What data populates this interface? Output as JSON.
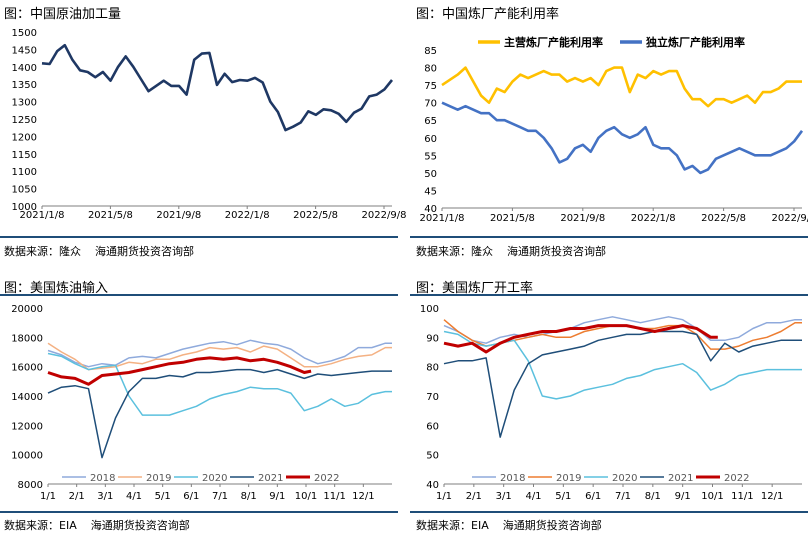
{
  "panels": [
    {
      "title": "图：中国原油加工量",
      "source": "数据来源：隆众",
      "org": "海通期货投资咨询部",
      "chart_data": {
        "type": "line",
        "xlabel": "",
        "ylabel": "",
        "xticks": [
          "2021/1/8",
          "2021/5/8",
          "2021/9/8",
          "2022/1/8",
          "2022/5/8",
          "2022/9/8"
        ],
        "yticks": [
          1000,
          1050,
          1100,
          1150,
          1200,
          1250,
          1300,
          1350,
          1400,
          1450,
          1500
        ],
        "ylim": [
          1000,
          1500
        ],
        "xlim": [
          0,
          92
        ],
        "legend": "none",
        "grid": false,
        "series": [
          {
            "name": "",
            "color": "#1f3864",
            "x": [
              0,
              2,
              4,
              6,
              8,
              10,
              12,
              14,
              16,
              18,
              20,
              22,
              24,
              26,
              28,
              30,
              32,
              34,
              36,
              38,
              40,
              42,
              44,
              46,
              48,
              50,
              52,
              54,
              56,
              58,
              60,
              62,
              64,
              66,
              68,
              70,
              72,
              74,
              76,
              78,
              80,
              82,
              84,
              86,
              88,
              90,
              92
            ],
            "y": [
              1410,
              1408,
              1445,
              1462,
              1420,
              1390,
              1385,
              1370,
              1385,
              1360,
              1400,
              1430,
              1400,
              1365,
              1330,
              1345,
              1360,
              1345,
              1345,
              1320,
              1420,
              1438,
              1440,
              1348,
              1380,
              1356,
              1362,
              1360,
              1368,
              1355,
              1300,
              1270,
              1218,
              1228,
              1240,
              1272,
              1262,
              1278,
              1275,
              1265,
              1242,
              1268,
              1280,
              1315,
              1320,
              1335,
              1362
            ]
          }
        ]
      }
    },
    {
      "title": "图：中国炼厂产能利用率",
      "source": "数据来源：隆众",
      "org": "海通期货投资咨询部",
      "chart_data": {
        "type": "line",
        "xlabel": "",
        "ylabel": "",
        "xticks": [
          "2021/1/8",
          "2021/5/8",
          "2021/9/8",
          "2022/1/8",
          "2022/5/8",
          "2022/9/8"
        ],
        "yticks": [
          40,
          45,
          50,
          55,
          60,
          65,
          70,
          75,
          80,
          85
        ],
        "ylim": [
          40,
          85
        ],
        "xlim": [
          0,
          92
        ],
        "legend": "top",
        "grid": false,
        "series": [
          {
            "name": "主营炼厂产能利用率",
            "color": "#ffc000",
            "x": [
              0,
              4,
              6,
              8,
              10,
              12,
              14,
              16,
              18,
              20,
              22,
              24,
              26,
              28,
              30,
              32,
              34,
              36,
              38,
              40,
              42,
              44,
              46,
              48,
              50,
              52,
              54,
              56,
              58,
              60,
              62,
              64,
              66,
              68,
              70,
              72,
              74,
              76,
              78,
              80,
              82,
              84,
              86,
              88,
              90,
              92
            ],
            "y": [
              75,
              78,
              80,
              76,
              72,
              70,
              74,
              73,
              76,
              78,
              77,
              78,
              79,
              78,
              78,
              76,
              77,
              76,
              77,
              75,
              79,
              80,
              80,
              73,
              78,
              77,
              79,
              78,
              79,
              79,
              74,
              71,
              71,
              69,
              71,
              71,
              70,
              71,
              72,
              70,
              73,
              73,
              74,
              76,
              76,
              76
            ]
          },
          {
            "name": "独立炼厂产能利用率",
            "color": "#4472c4",
            "x": [
              0,
              2,
              4,
              6,
              8,
              10,
              12,
              14,
              16,
              18,
              20,
              22,
              24,
              26,
              28,
              30,
              32,
              34,
              36,
              38,
              40,
              42,
              44,
              46,
              48,
              50,
              52,
              54,
              56,
              58,
              60,
              62,
              64,
              66,
              68,
              70,
              72,
              74,
              76,
              78,
              80,
              82,
              84,
              86,
              88,
              90,
              92
            ],
            "y": [
              70,
              69,
              68,
              69,
              68,
              67,
              67,
              65,
              65,
              64,
              63,
              62,
              62,
              60,
              57,
              53,
              54,
              57,
              58,
              56,
              60,
              62,
              63,
              61,
              60,
              61,
              63,
              58,
              57,
              57,
              55,
              51,
              52,
              50,
              51,
              54,
              55,
              56,
              57,
              56,
              55,
              55,
              55,
              56,
              57,
              59,
              62
            ]
          }
        ]
      }
    },
    {
      "title": "图：美国炼油输入",
      "source": "数据来源：EIA",
      "org": "海通期货投资咨询部",
      "chart_data": {
        "type": "line",
        "xlabel": "",
        "ylabel": "",
        "xticks": [
          "1/1",
          "2/1",
          "3/1",
          "4/1",
          "5/1",
          "6/1",
          "7/1",
          "8/1",
          "9/1",
          "10/1",
          "11/1",
          "12/1"
        ],
        "yticks": [
          8000,
          10000,
          12000,
          14000,
          16000,
          18000,
          20000
        ],
        "ylim": [
          8000,
          20000
        ],
        "xlim": [
          0,
          51
        ],
        "legend": "bottom",
        "grid": false,
        "series": [
          {
            "name": "2018",
            "color": "#8faadc",
            "x": [
              0,
              2,
              4,
              6,
              8,
              10,
              12,
              14,
              16,
              18,
              20,
              22,
              24,
              26,
              28,
              30,
              32,
              34,
              36,
              38,
              40,
              42,
              44,
              46,
              48,
              50,
              51
            ],
            "y": [
              17100,
              16800,
              16300,
              16000,
              16200,
              16100,
              16600,
              16700,
              16600,
              16900,
              17200,
              17400,
              17600,
              17700,
              17500,
              17800,
              17600,
              17500,
              17200,
              16600,
              16200,
              16400,
              16700,
              17300,
              17300,
              17600,
              17600
            ]
          },
          {
            "name": "2019",
            "color": "#f4b183",
            "x": [
              0,
              2,
              4,
              6,
              8,
              10,
              12,
              14,
              16,
              18,
              20,
              22,
              24,
              26,
              28,
              30,
              32,
              34,
              36,
              38,
              40,
              42,
              44,
              46,
              48,
              50,
              51
            ],
            "y": [
              17600,
              17000,
              16500,
              15800,
              15900,
              16000,
              16300,
              16200,
              16500,
              16500,
              16800,
              17000,
              17300,
              17200,
              17300,
              17000,
              17400,
              17200,
              16600,
              16000,
              16000,
              16200,
              16500,
              16700,
              16800,
              17300,
              17300
            ]
          },
          {
            "name": "2020",
            "color": "#5bc0de",
            "x": [
              0,
              2,
              4,
              6,
              8,
              10,
              12,
              14,
              16,
              18,
              20,
              22,
              24,
              26,
              28,
              30,
              32,
              34,
              36,
              38,
              40,
              42,
              44,
              46,
              48,
              50,
              51
            ],
            "y": [
              16900,
              16700,
              16200,
              15800,
              16000,
              16100,
              14000,
              12700,
              12700,
              12700,
              13000,
              13300,
              13800,
              14100,
              14300,
              14600,
              14500,
              14500,
              14200,
              13000,
              13300,
              13800,
              13300,
              13500,
              14100,
              14300,
              14300
            ]
          },
          {
            "name": "2021",
            "color": "#1f4e79",
            "x": [
              0,
              2,
              4,
              6,
              8,
              10,
              12,
              14,
              16,
              18,
              20,
              22,
              24,
              26,
              28,
              30,
              32,
              34,
              36,
              38,
              40,
              42,
              44,
              46,
              48,
              50,
              51
            ],
            "y": [
              14200,
              14600,
              14700,
              14500,
              9800,
              12500,
              14300,
              15200,
              15200,
              15400,
              15300,
              15600,
              15600,
              15700,
              15800,
              15800,
              15600,
              15800,
              15500,
              15200,
              15500,
              15400,
              15500,
              15600,
              15700,
              15700,
              15700
            ]
          },
          {
            "name": "2022",
            "color": "#c00000",
            "x": [
              0,
              2,
              4,
              6,
              8,
              10,
              12,
              14,
              16,
              18,
              20,
              22,
              24,
              26,
              28,
              30,
              32,
              34,
              36,
              38,
              39
            ],
            "y": [
              15600,
              15300,
              15200,
              14800,
              15400,
              15500,
              15600,
              15800,
              16000,
              16200,
              16300,
              16500,
              16600,
              16500,
              16600,
              16400,
              16500,
              16300,
              16000,
              15600,
              15700
            ]
          }
        ]
      }
    },
    {
      "title": "图：美国炼厂开工率",
      "source": "数据来源：EIA",
      "org": "海通期货投资咨询部",
      "chart_data": {
        "type": "line",
        "xlabel": "",
        "ylabel": "",
        "xticks": [
          "1/1",
          "2/1",
          "3/1",
          "4/1",
          "5/1",
          "6/1",
          "7/1",
          "8/1",
          "9/1",
          "10/1",
          "11/1",
          "12/1"
        ],
        "yticks": [
          40,
          50,
          60,
          70,
          80,
          90,
          100
        ],
        "ylim": [
          40,
          100
        ],
        "xlim": [
          0,
          51
        ],
        "legend": "bottom",
        "grid": false,
        "series": [
          {
            "name": "2018",
            "color": "#8faadc",
            "x": [
              0,
              2,
              4,
              6,
              8,
              10,
              12,
              14,
              16,
              18,
              20,
              22,
              24,
              26,
              28,
              30,
              32,
              34,
              36,
              38,
              40,
              42,
              44,
              46,
              48,
              50,
              51
            ],
            "y": [
              94,
              92,
              89,
              88,
              90,
              91,
              90,
              91,
              92,
              93,
              95,
              96,
              97,
              96,
              95,
              96,
              97,
              96,
              93,
              89,
              89,
              90,
              93,
              95,
              95,
              96,
              96
            ]
          },
          {
            "name": "2019",
            "color": "#ed7d31",
            "x": [
              0,
              2,
              4,
              6,
              8,
              10,
              12,
              14,
              16,
              18,
              20,
              22,
              24,
              26,
              28,
              30,
              32,
              34,
              36,
              38,
              40,
              42,
              44,
              46,
              48,
              50,
              51
            ],
            "y": [
              96,
              92,
              89,
              87,
              88,
              89,
              90,
              91,
              90,
              90,
              92,
              93,
              94,
              94,
              93,
              93,
              94,
              94,
              91,
              86,
              86,
              87,
              89,
              90,
              92,
              95,
              95
            ]
          },
          {
            "name": "2020",
            "color": "#5bc0de",
            "x": [
              0,
              2,
              4,
              6,
              8,
              10,
              12,
              14,
              16,
              18,
              20,
              22,
              24,
              26,
              28,
              30,
              32,
              34,
              36,
              38,
              40,
              42,
              44,
              46,
              48,
              50,
              51
            ],
            "y": [
              92,
              91,
              88,
              87,
              88,
              89,
              82,
              70,
              69,
              70,
              72,
              73,
              74,
              76,
              77,
              79,
              80,
              81,
              78,
              72,
              74,
              77,
              78,
              79,
              79,
              79,
              79
            ]
          },
          {
            "name": "2021",
            "color": "#1f4e79",
            "x": [
              0,
              2,
              4,
              6,
              8,
              10,
              12,
              14,
              16,
              18,
              20,
              22,
              24,
              26,
              28,
              30,
              32,
              34,
              36,
              38,
              40,
              42,
              44,
              46,
              48,
              50,
              51
            ],
            "y": [
              81,
              82,
              82,
              83,
              56,
              72,
              81,
              84,
              85,
              86,
              87,
              89,
              90,
              91,
              91,
              92,
              92,
              92,
              91,
              82,
              88,
              85,
              87,
              88,
              89,
              89,
              89
            ]
          },
          {
            "name": "2022",
            "color": "#c00000",
            "x": [
              0,
              2,
              4,
              6,
              8,
              10,
              12,
              14,
              16,
              18,
              20,
              22,
              24,
              26,
              28,
              30,
              32,
              34,
              36,
              38,
              39
            ],
            "y": [
              88,
              87,
              88,
              85,
              88,
              90,
              91,
              92,
              92,
              93,
              93,
              94,
              94,
              94,
              93,
              92,
              93,
              94,
              93,
              90,
              90
            ]
          }
        ]
      }
    }
  ]
}
